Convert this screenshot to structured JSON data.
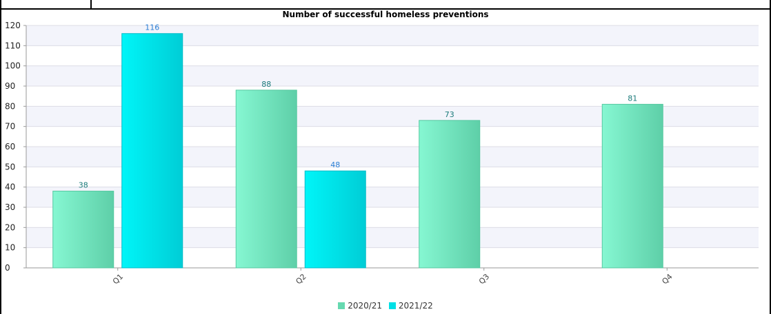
{
  "chart_data": {
    "type": "bar",
    "title": "Number of successful homeless preventions",
    "xlabel": "",
    "ylabel": "",
    "categories": [
      "Q1",
      "Q2",
      "Q3",
      "Q4"
    ],
    "series": [
      {
        "name": "2020/21",
        "values": [
          38,
          88,
          73,
          81
        ],
        "color": "#6fe0b9"
      },
      {
        "name": "2021/22",
        "values": [
          116,
          48,
          null,
          null
        ],
        "color": "#00e0e6"
      }
    ],
    "ylim": [
      0,
      120
    ],
    "yticks": [
      0,
      10,
      20,
      30,
      40,
      50,
      60,
      70,
      80,
      90,
      100,
      110,
      120
    ],
    "grid": true,
    "legend": "bottom-center",
    "data_label_colors": {
      "2020/21": "#1a7a7a",
      "2021/22": "#2b7fd4"
    }
  }
}
